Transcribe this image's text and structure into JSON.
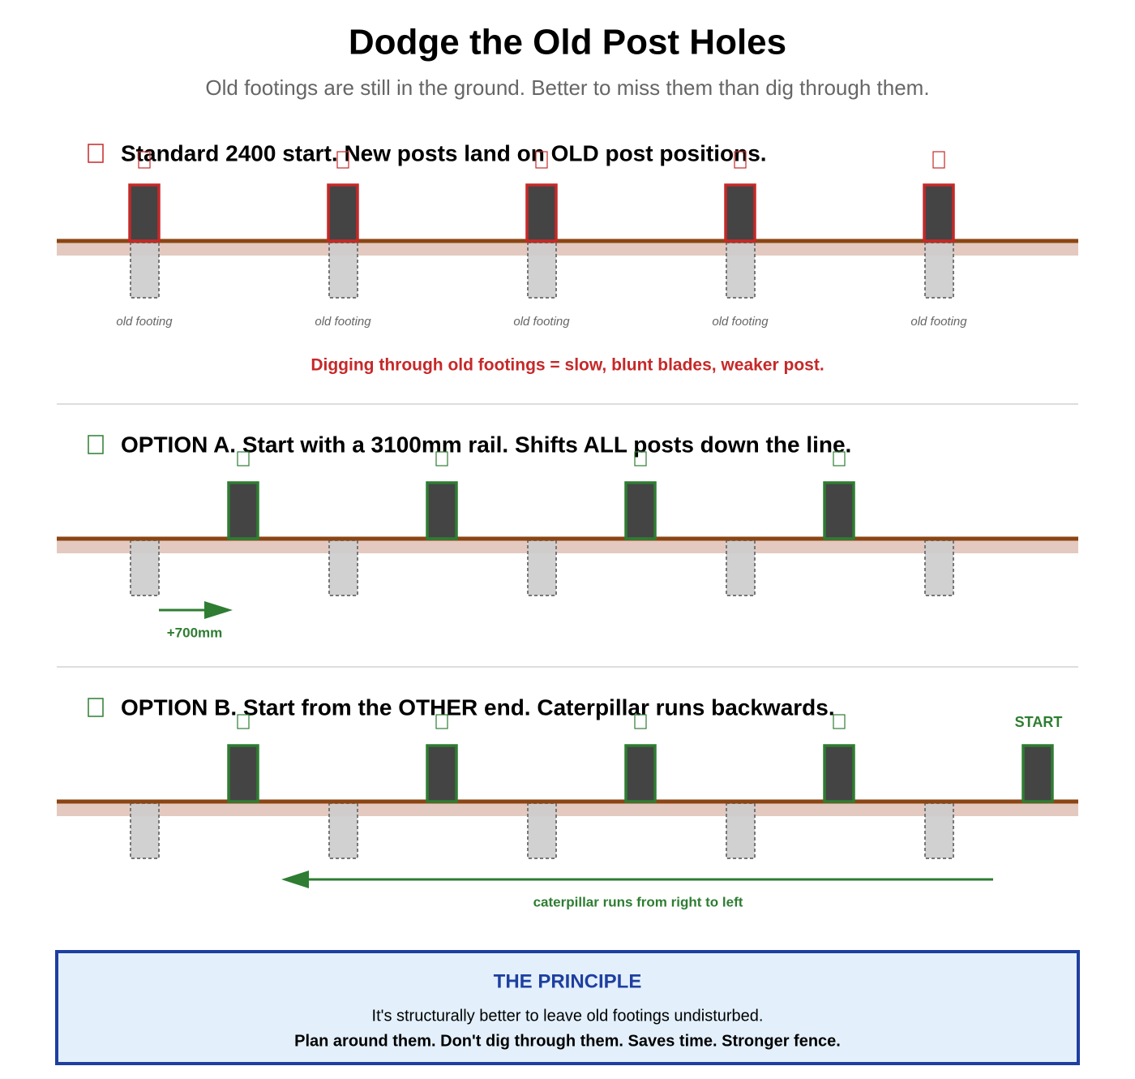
{
  "header": {
    "title": "Dodge the Old Post Holes",
    "subtitle": "Old footings are still in the ground. Better to miss them than dig through them."
  },
  "panels": [
    {
      "heading": "Standard 2400 start. New posts land on OLD post positions.",
      "footing_labels": [
        "old footing",
        "old footing",
        "old footing",
        "old footing",
        "old footing"
      ],
      "note": "Digging through old footings = slow, blunt blades, weaker post."
    },
    {
      "heading": "OPTION A. Start with a 3100mm rail. Shifts ALL posts down the line.",
      "shift_label": "+700mm"
    },
    {
      "heading": "OPTION B. Start from the OTHER end. Caterpillar runs backwards.",
      "start_label": "START",
      "direction_label": "caterpillar runs from right to left"
    }
  ],
  "principle": {
    "title": "THE PRINCIPLE",
    "line1": "It's structurally better to leave old footings undisturbed.",
    "line2": "Plan around them. Don't dig through them. Saves time. Stronger fence."
  }
}
